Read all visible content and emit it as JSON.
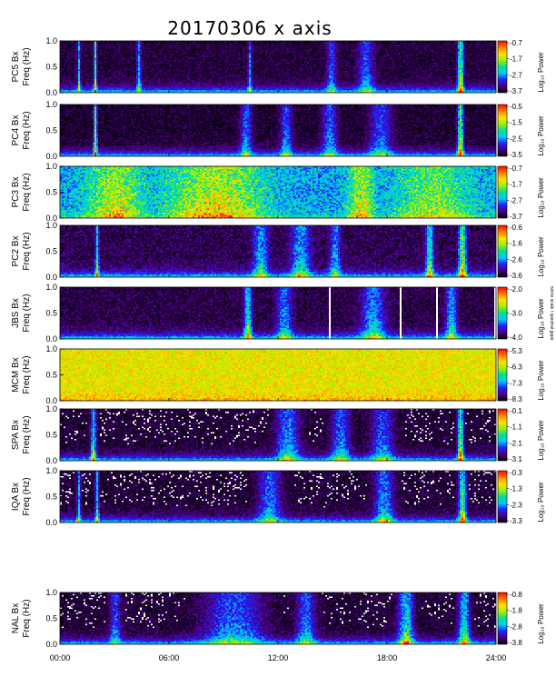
{
  "chart_data": {
    "type": "heatmap",
    "title": "20170306 x axis",
    "colorbar_label": "Log₁₀ Power",
    "colormap": [
      "#000000",
      "#4a0080",
      "#2020ff",
      "#00c8ff",
      "#00e090",
      "#a0f000",
      "#ffe000",
      "#ff8000",
      "#ff0000"
    ],
    "x_ticks": [
      "00:00",
      "06:00",
      "12:00",
      "18:00",
      "24:00"
    ],
    "x_range_hours": [
      0,
      24
    ],
    "y_ticks": [
      "0.0",
      "0.5",
      "1.0"
    ],
    "y_range_hz": [
      0,
      1.0
    ],
    "panels": [
      {
        "station": "PC5",
        "ylabel": "PC5 Bx",
        "ylabel2": "Freq (Hz)",
        "cbar_ticks": [
          "-0.7",
          "-1.7",
          "-2.7",
          "-3.7"
        ],
        "cbar_range": [
          -3.7,
          -0.7
        ],
        "base_level": 0.06,
        "noise": 0.05,
        "events": [
          [
            1.0,
            0.08,
            0.55
          ],
          [
            1.9,
            0.08,
            0.75
          ],
          [
            4.3,
            0.12,
            0.45
          ],
          [
            10.4,
            0.1,
            0.4
          ],
          [
            14.9,
            0.25,
            0.35
          ],
          [
            16.8,
            0.4,
            0.35
          ],
          [
            22.0,
            0.15,
            0.85
          ]
        ]
      },
      {
        "station": "PC4",
        "ylabel": "PC4 Bx",
        "ylabel2": "Freq (Hz)",
        "cbar_ticks": [
          "-0.5",
          "-1.5",
          "-2.5",
          "-3.5"
        ],
        "cbar_range": [
          -3.5,
          -0.5
        ],
        "base_level": 0.05,
        "noise": 0.05,
        "events": [
          [
            1.9,
            0.1,
            0.8
          ],
          [
            10.2,
            0.3,
            0.4
          ],
          [
            12.4,
            0.3,
            0.4
          ],
          [
            14.8,
            0.4,
            0.4
          ],
          [
            17.6,
            0.6,
            0.35
          ],
          [
            22.0,
            0.15,
            0.85
          ]
        ]
      },
      {
        "station": "PC3",
        "ylabel": "PC3 Bx",
        "ylabel2": "Freq (Hz)",
        "cbar_ticks": [
          "-0.7",
          "-1.7",
          "-2.7",
          "-3.7"
        ],
        "cbar_range": [
          -3.7,
          -0.7
        ],
        "base_level": 0.36,
        "noise": 0.14,
        "events": [
          [
            3.0,
            1.5,
            0.45
          ],
          [
            8.5,
            2.5,
            0.5
          ],
          [
            16.5,
            0.7,
            0.45
          ],
          [
            20.5,
            2.0,
            0.35
          ]
        ]
      },
      {
        "station": "PC2",
        "ylabel": "PC2 Bx",
        "ylabel2": "Freq (Hz)",
        "cbar_ticks": [
          "-0.6",
          "-1.6",
          "-2.6",
          "-3.6"
        ],
        "cbar_range": [
          -3.6,
          -0.6
        ],
        "base_level": 0.08,
        "noise": 0.07,
        "events": [
          [
            2.0,
            0.1,
            0.6
          ],
          [
            11.0,
            0.4,
            0.45
          ],
          [
            13.2,
            0.5,
            0.45
          ],
          [
            15.1,
            0.3,
            0.4
          ],
          [
            20.3,
            0.2,
            0.65
          ],
          [
            22.1,
            0.2,
            0.8
          ]
        ]
      },
      {
        "station": "JBS",
        "ylabel": "JBS Bx",
        "ylabel2": "Freq (Hz)",
        "cbar_ticks": [
          "-2.0",
          "-3.0",
          "-4.0"
        ],
        "cbar_range": [
          -4.0,
          -2.0
        ],
        "base_level": 0.07,
        "noise": 0.06,
        "note": "not to scale / spectral gaps",
        "gaps_hours": [
          14.83,
          18.7,
          20.7,
          23.9
        ],
        "events": [
          [
            10.3,
            0.2,
            0.6
          ],
          [
            12.3,
            0.4,
            0.4
          ],
          [
            17.2,
            0.6,
            0.45
          ],
          [
            21.5,
            0.3,
            0.5
          ]
        ]
      },
      {
        "station": "MCM",
        "ylabel": "MCM Bx",
        "ylabel2": "Freq (Hz)",
        "cbar_ticks": [
          "-5.3",
          "-6.3",
          "-7.3",
          "-8.3"
        ],
        "cbar_range": [
          -8.3,
          -5.3
        ],
        "base_level": 0.72,
        "noise": 0.1,
        "events": []
      },
      {
        "station": "SPA",
        "ylabel": "SPA Bx",
        "ylabel2": "Freq (Hz)",
        "cbar_ticks": [
          "-0.1",
          "-1.1",
          "-2.1",
          "-3.1"
        ],
        "cbar_range": [
          -3.1,
          -0.1
        ],
        "base_level": 0.05,
        "noise": 0.06,
        "events": [
          [
            1.8,
            0.15,
            0.6
          ],
          [
            12.5,
            0.6,
            0.45
          ],
          [
            15.4,
            0.5,
            0.4
          ],
          [
            17.7,
            0.6,
            0.35
          ],
          [
            22.0,
            0.15,
            0.85
          ]
        ]
      },
      {
        "station": "IQA",
        "ylabel": "IQA Bx",
        "ylabel2": "Freq (Hz)",
        "cbar_ticks": [
          "-0.3",
          "-1.3",
          "-2.3",
          "-3.3"
        ],
        "cbar_range": [
          -3.3,
          -0.3
        ],
        "base_level": 0.05,
        "noise": 0.06,
        "events": [
          [
            1.0,
            0.1,
            0.5
          ],
          [
            2.0,
            0.1,
            0.6
          ],
          [
            11.5,
            0.6,
            0.4
          ],
          [
            17.8,
            0.5,
            0.45
          ],
          [
            22.1,
            0.2,
            0.75
          ]
        ]
      },
      {
        "station": "NAL",
        "ylabel": "NAL Bx",
        "ylabel2": "Freq (Hz)",
        "cbar_ticks": [
          "-0.8",
          "-1.8",
          "-2.8",
          "-3.8"
        ],
        "cbar_range": [
          -3.8,
          -0.8
        ],
        "base_level": 0.05,
        "noise": 0.06,
        "events": [
          [
            3.0,
            0.3,
            0.35
          ],
          [
            9.5,
            1.5,
            0.4
          ],
          [
            13.5,
            0.5,
            0.4
          ],
          [
            19.0,
            0.4,
            0.6
          ],
          [
            22.2,
            0.3,
            0.6
          ]
        ]
      }
    ]
  }
}
